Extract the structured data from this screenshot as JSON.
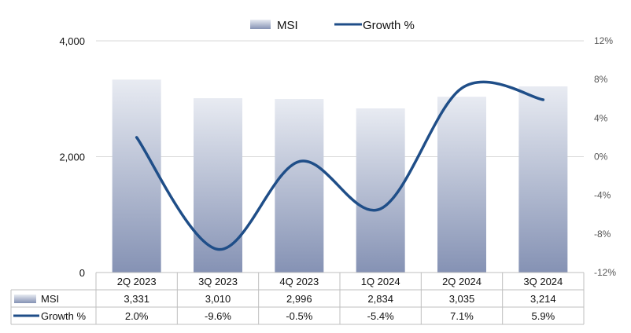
{
  "chart_data": {
    "type": "bar",
    "categories": [
      "2Q 2023",
      "3Q 2023",
      "4Q 2023",
      "1Q 2024",
      "2Q 2024",
      "3Q 2024"
    ],
    "series": [
      {
        "name": "MSI",
        "type": "bar",
        "axis": "left",
        "values": [
          3331,
          3010,
          2996,
          2834,
          3035,
          3214
        ],
        "labels": [
          "3,331",
          "3,010",
          "2,996",
          "2,834",
          "3,035",
          "3,214"
        ]
      },
      {
        "name": "Growth %",
        "type": "line",
        "axis": "right",
        "values": [
          2.0,
          -9.6,
          -0.5,
          -5.4,
          7.1,
          5.9
        ],
        "labels": [
          "2.0%",
          "-9.6%",
          "-0.5%",
          "-5.4%",
          "7.1%",
          "5.9%"
        ]
      }
    ],
    "y_left": {
      "min": 0,
      "max": 4000,
      "ticks": [
        0,
        2000,
        4000
      ],
      "tick_labels": [
        "0",
        "2,000",
        "4,000"
      ]
    },
    "y_right": {
      "min": -12,
      "max": 12,
      "ticks": [
        -12,
        -8,
        -4,
        0,
        4,
        8,
        12
      ],
      "tick_labels": [
        "-12%",
        "-8%",
        "-4%",
        "0%",
        "4%",
        "8%",
        "12%"
      ]
    },
    "legend_position": "top-center",
    "data_table": true,
    "grid": true,
    "colors": {
      "bar_top": "#e8ebf2",
      "bar_bottom": "#8592b4",
      "line": "#1f4e88",
      "grid": "#d9d9d9",
      "table_border": "#bfbfbf"
    }
  }
}
